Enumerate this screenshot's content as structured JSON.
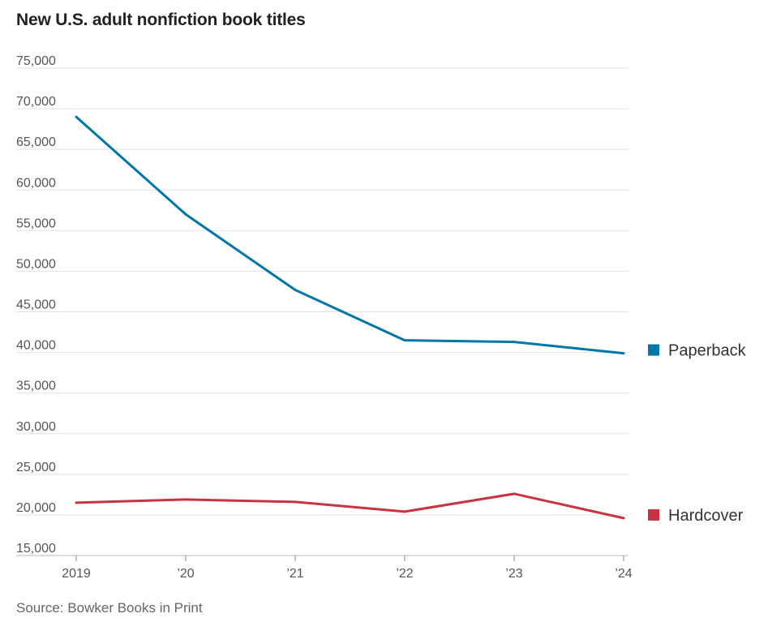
{
  "chart_data": {
    "type": "line",
    "title": "New U.S. adult nonfiction book titles",
    "categories": [
      "2019",
      "’20",
      "’21",
      "’22",
      "’23",
      "’24"
    ],
    "series": [
      {
        "name": "Paperback",
        "color": "#0077a8",
        "values": [
          69000,
          57000,
          47700,
          41500,
          41300,
          39900
        ]
      },
      {
        "name": "Hardcover",
        "color": "#c9323f",
        "values": [
          21500,
          21900,
          21600,
          20400,
          22600,
          19600
        ]
      }
    ],
    "yticks": [
      "75,000",
      "70,000",
      "65,000",
      "60,000",
      "55,000",
      "50,000",
      "45,000",
      "40,000",
      "35,000",
      "30,000",
      "25,000",
      "20,000",
      "15,000"
    ],
    "ylim": [
      15000,
      75000
    ],
    "grid": true,
    "legend_placement": "right",
    "xlabel": "",
    "ylabel": ""
  },
  "source": "Source: Bowker Books in Print"
}
